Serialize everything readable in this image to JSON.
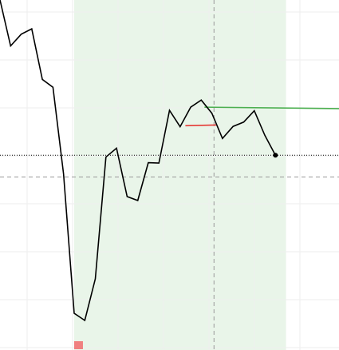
{
  "chart_data": {
    "type": "line",
    "title": "",
    "xlabel": "",
    "ylabel": "",
    "x": [
      0,
      1,
      2,
      3,
      4,
      5,
      6,
      7,
      8,
      9,
      10,
      11,
      12,
      13,
      14,
      15,
      16,
      17,
      18,
      19,
      20,
      21,
      22,
      23,
      24,
      25,
      26
    ],
    "series": [
      {
        "values": [
          103.3,
          90.4,
          93.7,
          95.2,
          81.0,
          78.8,
          54.4,
          15.3,
          13.3,
          25.0,
          59.2,
          61.7,
          48.1,
          47.0,
          57.6,
          57.5,
          72.3,
          67.7,
          73.2,
          75.2,
          71.5,
          64.4,
          67.8,
          69.0,
          72.2,
          65.3,
          59.7
        ],
        "color": "#000000"
      }
    ],
    "xlim": [
      0,
      32
    ],
    "ylim": [
      5,
      103.3
    ],
    "grid": true,
    "highlight_range": {
      "x_from": 7,
      "x_to": 27,
      "color": "#e9f5e9"
    },
    "reference_lines": [
      {
        "orientation": "horizontal",
        "y": 59.7,
        "style": "dotted",
        "color": "#000000"
      },
      {
        "orientation": "horizontal",
        "y": 53.6,
        "style": "dashed",
        "color": "#999999"
      },
      {
        "orientation": "vertical",
        "x": 20.2,
        "style": "dashed",
        "color": "#999999"
      }
    ],
    "segments": [
      {
        "x_from": 19.3,
        "x_to": 32,
        "y_from": 73.2,
        "y_to": 72.8,
        "color": "#4caf50"
      },
      {
        "x_from": 17.5,
        "x_to": 20.4,
        "y_from": 68.0,
        "y_to": 68.2,
        "color": "#e53935"
      }
    ],
    "end_point": {
      "x": 26,
      "y": 59.7
    },
    "marker": {
      "x": 7,
      "color": "#f08080"
    }
  }
}
